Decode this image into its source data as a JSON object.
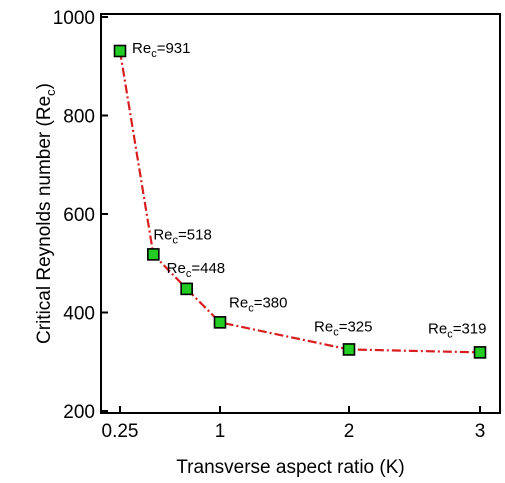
{
  "chart_data": {
    "type": "line",
    "xlabel": "Transverse aspect ratio (K)",
    "ylabel": "Critical Reynolds number (Re",
    "ylabel_sub": "c",
    "ylabel_close": ")",
    "xlim": [
      0.25,
      3
    ],
    "ylim": [
      200,
      1000
    ],
    "x_ticks": [
      0.25,
      1,
      2,
      3
    ],
    "x_tick_labels": [
      "0.25",
      "1",
      "2",
      "3"
    ],
    "y_ticks": [
      200,
      400,
      600,
      800,
      1000
    ],
    "y_tick_labels": [
      "200",
      "400",
      "600",
      "800",
      "1000"
    ],
    "grid": false,
    "line_color": "#d81e1e",
    "line_style": "dash-dot",
    "marker_fill": "#22cc22",
    "marker_edge": "#000000",
    "marker_shape": "square",
    "series": [
      {
        "x": [
          0.25,
          0.5,
          0.75,
          1,
          2,
          3
        ],
        "y": [
          931,
          518,
          448,
          380,
          325,
          319
        ]
      }
    ],
    "annotations": [
      {
        "base": "Re",
        "sub": "c",
        "suffix": "=931"
      },
      {
        "base": "Re",
        "sub": "c",
        "suffix": "=518"
      },
      {
        "base": "Re",
        "sub": "c",
        "suffix": "=448"
      },
      {
        "base": "Re",
        "sub": "c",
        "suffix": "=380"
      },
      {
        "base": "Re",
        "sub": "c",
        "suffix": "=325"
      },
      {
        "base": "Re",
        "sub": "c",
        "suffix": "=319"
      }
    ]
  }
}
